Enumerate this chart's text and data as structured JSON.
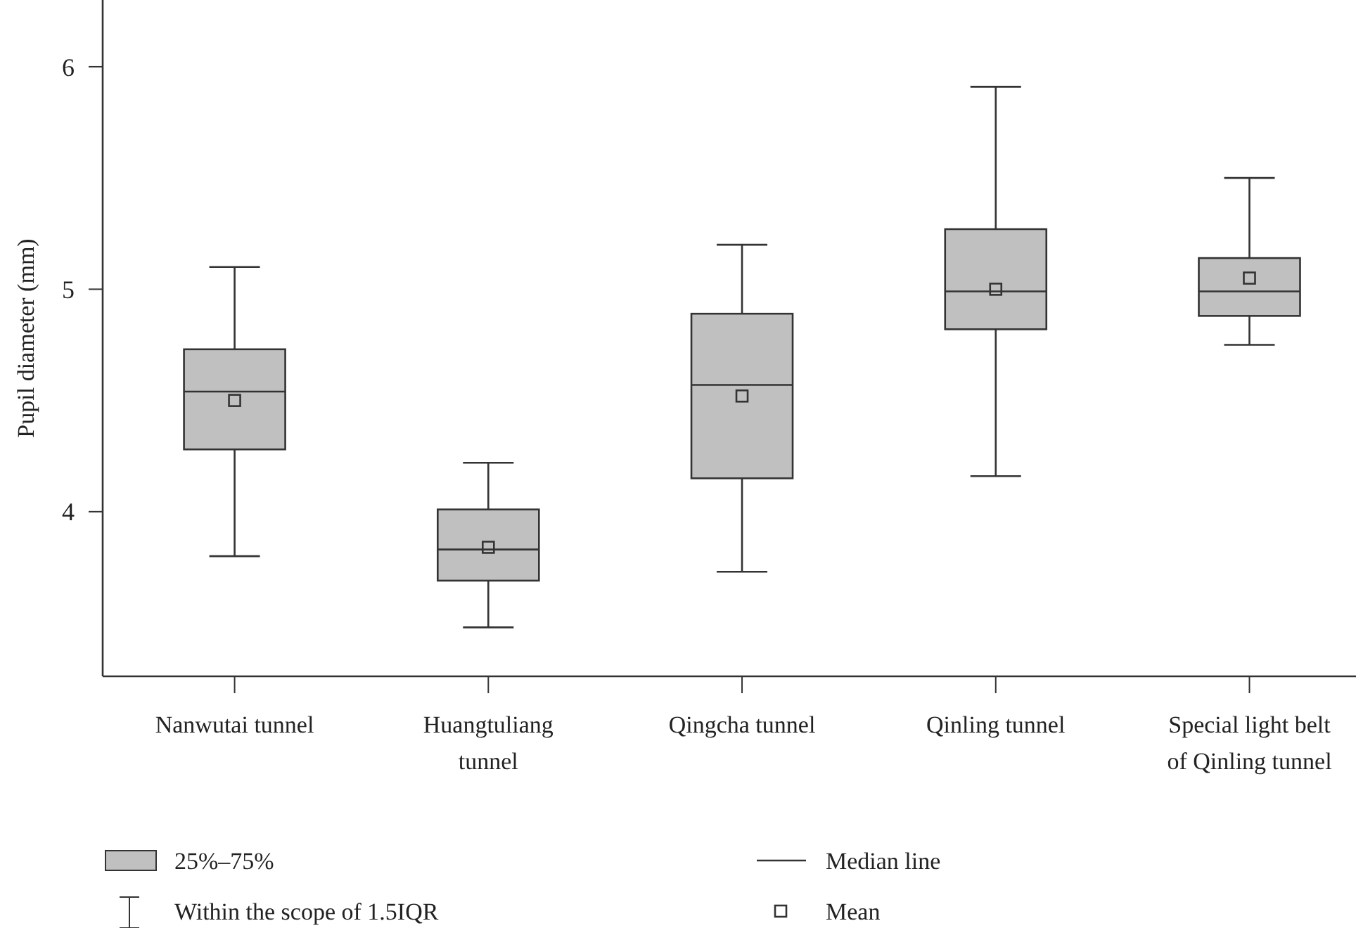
{
  "chart_data": {
    "type": "box",
    "ylabel": "Pupil diameter (mm)",
    "categories": [
      "Nanwutai tunnel",
      "Huangtuliang tunnel",
      "Qingcha tunnel",
      "Qinling tunnel",
      "Special light belt of Qinling tunnel"
    ],
    "color": "#c0c0c0",
    "boxes": [
      {
        "low": 3.8,
        "q1": 4.28,
        "median": 4.54,
        "q3": 4.73,
        "high": 5.1,
        "mean": 4.5
      },
      {
        "low": 3.48,
        "q1": 3.69,
        "median": 3.83,
        "q3": 4.01,
        "high": 4.22,
        "mean": 3.84
      },
      {
        "low": 3.73,
        "q1": 4.15,
        "median": 4.57,
        "q3": 4.89,
        "high": 5.2,
        "mean": 4.52
      },
      {
        "low": 4.16,
        "q1": 4.82,
        "median": 4.99,
        "q3": 5.27,
        "high": 5.91,
        "mean": 5.0
      },
      {
        "low": 4.75,
        "q1": 4.88,
        "median": 4.99,
        "q3": 5.14,
        "high": 5.5,
        "mean": 5.05
      }
    ],
    "ylim": [
      3.26,
      6.3
    ],
    "yticks": [
      4,
      5,
      6
    ],
    "grid": false,
    "annotations": [
      "25%–75%",
      "Median line",
      "Within the scope of 1.5IQR",
      "Mean"
    ]
  }
}
